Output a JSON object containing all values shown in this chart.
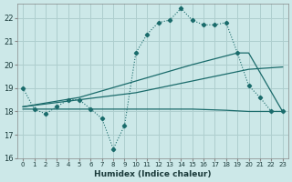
{
  "xlabel": "Humidex (Indice chaleur)",
  "bg_color": "#cce8e8",
  "grid_color": "#aecece",
  "line_color": "#1a6b6b",
  "xlim": [
    -0.5,
    23.5
  ],
  "ylim": [
    16,
    22.6
  ],
  "xtick_labels": [
    "0",
    "1",
    "2",
    "3",
    "4",
    "5",
    "6",
    "7",
    "8",
    "9",
    "10",
    "11",
    "12",
    "13",
    "14",
    "15",
    "16",
    "17",
    "18",
    "19",
    "20",
    "21",
    "22",
    "23"
  ],
  "ytick_values": [
    16,
    17,
    18,
    19,
    20,
    21,
    22
  ],
  "main_x": [
    0,
    1,
    2,
    3,
    4,
    5,
    6,
    7,
    8,
    9,
    10,
    11,
    12,
    13,
    14,
    15,
    16,
    17,
    18,
    19,
    20,
    21,
    22,
    23
  ],
  "main_y": [
    19.0,
    18.1,
    17.9,
    18.2,
    18.5,
    18.5,
    18.1,
    17.7,
    16.4,
    17.4,
    20.5,
    21.3,
    21.8,
    21.9,
    22.4,
    21.9,
    21.7,
    21.7,
    21.8,
    20.5,
    19.1,
    18.6,
    18.0,
    18.0
  ],
  "flat_x": [
    0,
    5,
    10,
    15,
    18,
    20,
    23
  ],
  "flat_y": [
    18.1,
    18.1,
    18.1,
    18.1,
    18.05,
    18.0,
    18.0
  ],
  "mid_x": [
    0,
    5,
    10,
    15,
    20,
    23
  ],
  "mid_y": [
    18.2,
    18.5,
    18.8,
    19.3,
    19.8,
    19.9
  ],
  "upper_x": [
    0,
    5,
    10,
    15,
    19,
    20,
    23
  ],
  "upper_y": [
    18.2,
    18.6,
    19.3,
    20.0,
    20.5,
    20.5,
    18.0
  ],
  "linewidth": 0.9
}
